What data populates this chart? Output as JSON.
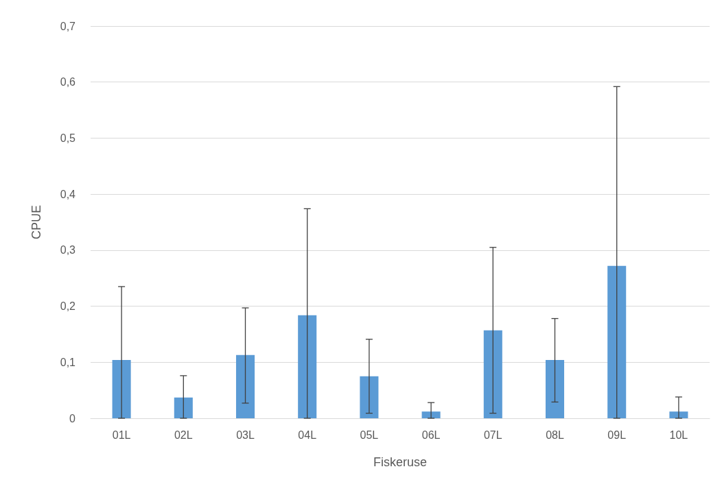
{
  "chart_data": {
    "type": "bar",
    "xlabel": "Fiskeruse",
    "ylabel": "CPUE",
    "categories": [
      "01L",
      "02L",
      "03L",
      "04L",
      "05L",
      "06L",
      "07L",
      "08L",
      "09L",
      "10L"
    ],
    "series": [
      {
        "color": "#5b9bd5",
        "values": [
          0.104,
          0.037,
          0.113,
          0.184,
          0.075,
          0.012,
          0.157,
          0.104,
          0.272,
          0.012
        ],
        "errors": [
          [
            0,
            0.235
          ],
          [
            0,
            0.076
          ],
          [
            0.027,
            0.197
          ],
          [
            0,
            0.374
          ],
          [
            0.009,
            0.141
          ],
          [
            0,
            0.028
          ],
          [
            0.009,
            0.305
          ],
          [
            0.029,
            0.178
          ],
          [
            0,
            0.592
          ],
          [
            0,
            0.038
          ]
        ]
      }
    ],
    "ylim": [
      0,
      0.7
    ],
    "yticks": [
      0,
      {
        "value": 0.1,
        "label": "0,1"
      },
      {
        "value": 0.2,
        "label": "0,2"
      },
      {
        "value": 0.3,
        "label": "0,3"
      },
      {
        "value": 0.4,
        "label": "0,4"
      },
      {
        "value": 0.5,
        "label": "0,5"
      },
      {
        "value": 0.6,
        "label": "0,6"
      },
      {
        "value": 0.7,
        "label": "0,7"
      }
    ],
    "grid": "y"
  }
}
